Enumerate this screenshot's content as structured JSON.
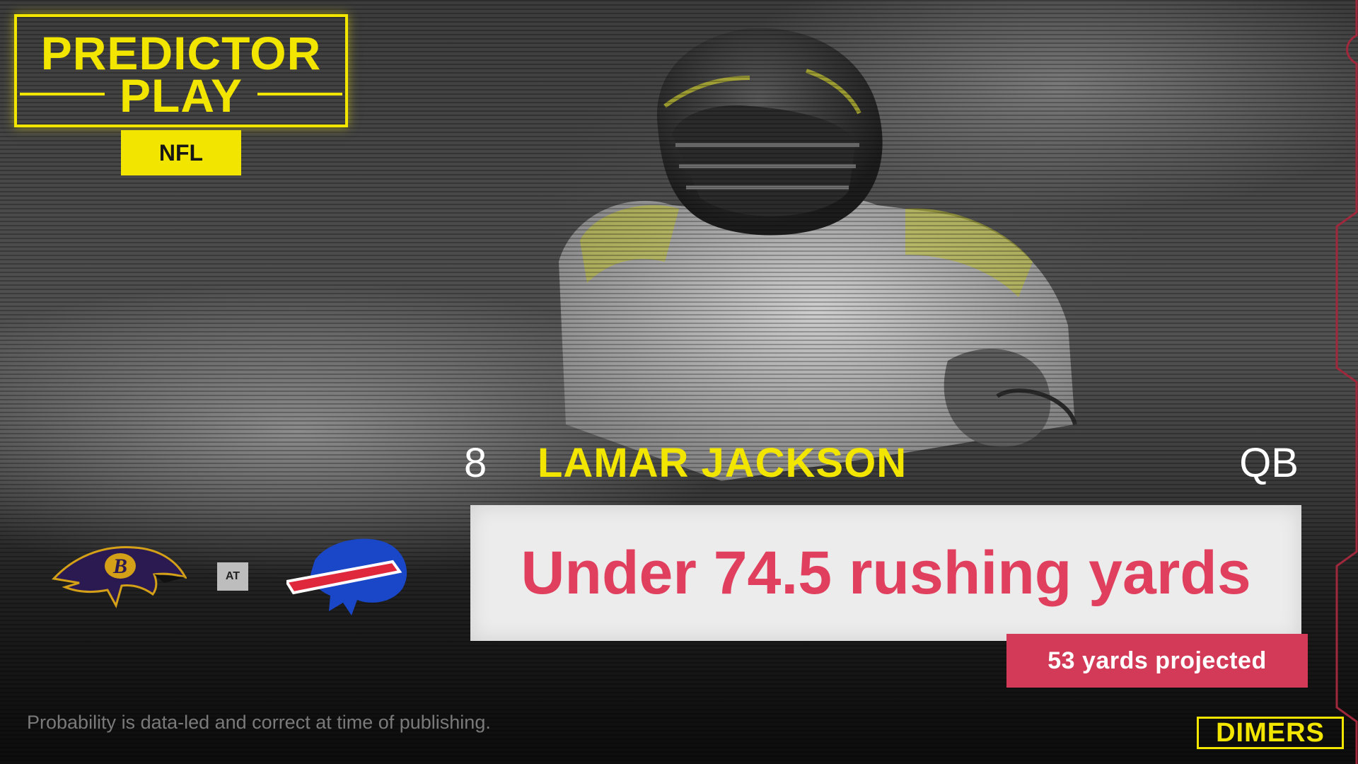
{
  "badge": {
    "line1": "PREDICTOR",
    "line2": "PLAY",
    "league": "NFL"
  },
  "player": {
    "number": "8",
    "name": "LAMAR JACKSON",
    "position": "QB"
  },
  "pick": {
    "text": "Under 74.5 rushing yards",
    "projection": "53 yards projected"
  },
  "matchup": {
    "away_team": "ravens-logo",
    "separator": "AT",
    "home_team": "bills-logo"
  },
  "disclaimer": "Probability is data-led and correct at time of publishing.",
  "brand": "DIMERS",
  "colors": {
    "accent_yellow": "#f2e600",
    "pick_red": "#e0405e",
    "projection_bg": "#d23a58"
  }
}
